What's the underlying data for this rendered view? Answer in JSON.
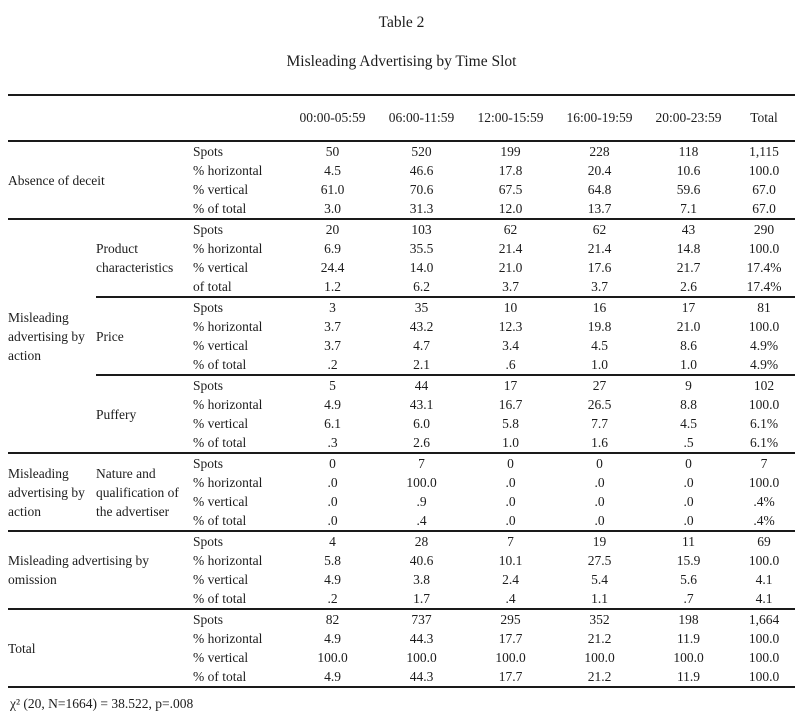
{
  "colors": {
    "ink": "#1c1c1c",
    "background": "#ffffff",
    "rule": "#1a1a1a"
  },
  "table": {
    "title": "Table 2",
    "subtitle": "Misleading Advertising by Time Slot",
    "columns": [
      "00:00-05:59",
      "06:00-11:59",
      "12:00-15:59",
      "16:00-19:59",
      "20:00-23:59",
      "Total"
    ],
    "sections": [
      {
        "group": "Absence of deceit",
        "subgroups": [
          {
            "label": "",
            "rows": [
              {
                "measure": "Spots",
                "values": [
                  "50",
                  "520",
                  "199",
                  "228",
                  "118",
                  "1,115"
                ]
              },
              {
                "measure": "% horizontal",
                "values": [
                  "4.5",
                  "46.6",
                  "17.8",
                  "20.4",
                  "10.6",
                  "100.0"
                ]
              },
              {
                "measure": "% vertical",
                "values": [
                  "61.0",
                  "70.6",
                  "67.5",
                  "64.8",
                  "59.6",
                  "67.0"
                ]
              },
              {
                "measure": "% of total",
                "values": [
                  "3.0",
                  "31.3",
                  "12.0",
                  "13.7",
                  "7.1",
                  "67.0"
                ]
              }
            ]
          }
        ]
      },
      {
        "group": "Misleading advertising by action",
        "subgroups": [
          {
            "label": "Product characteristics",
            "rows": [
              {
                "measure": "Spots",
                "values": [
                  "20",
                  "103",
                  "62",
                  "62",
                  "43",
                  "290"
                ]
              },
              {
                "measure": "% horizontal",
                "values": [
                  "6.9",
                  "35.5",
                  "21.4",
                  "21.4",
                  "14.8",
                  "100.0"
                ]
              },
              {
                "measure": "% vertical",
                "values": [
                  "24.4",
                  "14.0",
                  "21.0",
                  "17.6",
                  "21.7",
                  "17.4%"
                ]
              },
              {
                "measure": "of total",
                "values": [
                  "1.2",
                  "6.2",
                  "3.7",
                  "3.7",
                  "2.6",
                  "17.4%"
                ]
              }
            ]
          },
          {
            "label": "Price",
            "rows": [
              {
                "measure": "Spots",
                "values": [
                  "3",
                  "35",
                  "10",
                  "16",
                  "17",
                  "81"
                ]
              },
              {
                "measure": "% horizontal",
                "values": [
                  "3.7",
                  "43.2",
                  "12.3",
                  "19.8",
                  "21.0",
                  "100.0"
                ]
              },
              {
                "measure": "% vertical",
                "values": [
                  "3.7",
                  "4.7",
                  "3.4",
                  "4.5",
                  "8.6",
                  "4.9%"
                ]
              },
              {
                "measure": "% of total",
                "values": [
                  ".2",
                  "2.1",
                  ".6",
                  "1.0",
                  "1.0",
                  "4.9%"
                ]
              }
            ]
          },
          {
            "label": "Puffery",
            "rows": [
              {
                "measure": "Spots",
                "values": [
                  "5",
                  "44",
                  "17",
                  "27",
                  "9",
                  "102"
                ]
              },
              {
                "measure": "% horizontal",
                "values": [
                  "4.9",
                  "43.1",
                  "16.7",
                  "26.5",
                  "8.8",
                  "100.0"
                ]
              },
              {
                "measure": "% vertical",
                "values": [
                  "6.1",
                  "6.0",
                  "5.8",
                  "7.7",
                  "4.5",
                  "6.1%"
                ]
              },
              {
                "measure": "% of total",
                "values": [
                  ".3",
                  "2.6",
                  "1.0",
                  "1.6",
                  ".5",
                  "6.1%"
                ]
              }
            ]
          }
        ]
      },
      {
        "group": "Misleading advertising by action",
        "subgroups": [
          {
            "label": "Nature and qualification of the advertiser",
            "rows": [
              {
                "measure": "Spots",
                "values": [
                  "0",
                  "7",
                  "0",
                  "0",
                  "0",
                  "7"
                ]
              },
              {
                "measure": "% horizontal",
                "values": [
                  ".0",
                  "100.0",
                  ".0",
                  ".0",
                  ".0",
                  "100.0"
                ]
              },
              {
                "measure": "% vertical",
                "values": [
                  ".0",
                  ".9",
                  ".0",
                  ".0",
                  ".0",
                  ".4%"
                ]
              },
              {
                "measure": "% of total",
                "values": [
                  ".0",
                  ".4",
                  ".0",
                  ".0",
                  ".0",
                  ".4%"
                ]
              }
            ]
          }
        ]
      },
      {
        "group": "Misleading advertising by omission",
        "subgroups": [
          {
            "label": "",
            "rows": [
              {
                "measure": "Spots",
                "values": [
                  "4",
                  "28",
                  "7",
                  "19",
                  "11",
                  "69"
                ]
              },
              {
                "measure": "% horizontal",
                "values": [
                  "5.8",
                  "40.6",
                  "10.1",
                  "27.5",
                  "15.9",
                  "100.0"
                ]
              },
              {
                "measure": "% vertical",
                "values": [
                  "4.9",
                  "3.8",
                  "2.4",
                  "5.4",
                  "5.6",
                  "4.1"
                ]
              },
              {
                "measure": "% of total",
                "values": [
                  ".2",
                  "1.7",
                  ".4",
                  "1.1",
                  ".7",
                  "4.1"
                ]
              }
            ]
          }
        ]
      },
      {
        "group": "Total",
        "subgroups": [
          {
            "label": "",
            "rows": [
              {
                "measure": "Spots",
                "values": [
                  "82",
                  "737",
                  "295",
                  "352",
                  "198",
                  "1,664"
                ]
              },
              {
                "measure": "% horizontal",
                "values": [
                  "4.9",
                  "44.3",
                  "17.7",
                  "21.2",
                  "11.9",
                  "100.0"
                ]
              },
              {
                "measure": "% vertical",
                "values": [
                  "100.0",
                  "100.0",
                  "100.0",
                  "100.0",
                  "100.0",
                  "100.0"
                ]
              },
              {
                "measure": "% of total",
                "values": [
                  "4.9",
                  "44.3",
                  "17.7",
                  "21.2",
                  "11.9",
                  "100.0"
                ]
              }
            ]
          }
        ]
      }
    ],
    "footnote": "χ² (20, N=1664) = 38.522, p=.008"
  }
}
